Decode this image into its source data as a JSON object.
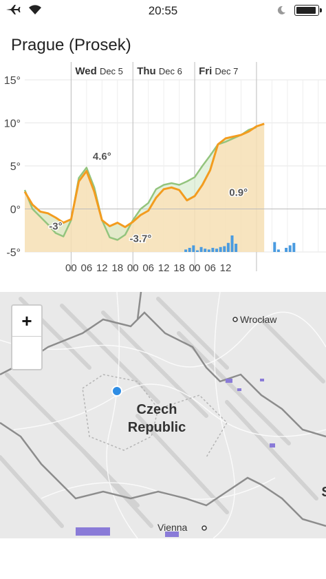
{
  "status_bar": {
    "time": "20:55",
    "battery_level": 1.0
  },
  "location": {
    "title": "Prague (Prosek)"
  },
  "chart_data": {
    "type": "line",
    "y_ticks": [
      "15°",
      "10°",
      "5°",
      "0°",
      "-5°"
    ],
    "ylim": [
      -5,
      15
    ],
    "x_tick_labels": [
      "00",
      "06",
      "12",
      "18",
      "00",
      "06",
      "12",
      "18",
      "00",
      "06",
      "12"
    ],
    "day_labels": [
      {
        "day": "Wed",
        "date": "Dec 5"
      },
      {
        "day": "Thu",
        "date": "Dec 6"
      },
      {
        "day": "Fri",
        "date": "Dec 7"
      }
    ],
    "annotations": [
      {
        "text": "4.6°"
      },
      {
        "text": "-3°"
      },
      {
        "text": "-3.7°"
      },
      {
        "text": "0.9°"
      }
    ],
    "series": [
      {
        "color": "#f39c1f",
        "x_hours": [
          0,
          3,
          6,
          9,
          12,
          15,
          18,
          21,
          24,
          27,
          30,
          33,
          36,
          39,
          42,
          45,
          48,
          51,
          54,
          57,
          60,
          63,
          66,
          69,
          72,
          75,
          78,
          81,
          84,
          87,
          90,
          93
        ],
        "values": [
          2,
          0.5,
          -0.3,
          -0.5,
          -1,
          -1.6,
          -1.2,
          3.2,
          4.4,
          2,
          -1.3,
          -2,
          -1.6,
          -2.1,
          -1.5,
          -0.7,
          -0.2,
          1.3,
          2.3,
          2.5,
          2.2,
          1,
          1.5,
          2.8,
          4.5,
          7.5,
          8.2,
          8.4,
          8.6,
          9,
          9.6,
          9.9
        ]
      },
      {
        "color": "#93c47d",
        "x_hours": [
          0,
          3,
          6,
          9,
          12,
          15,
          18,
          21,
          24,
          27,
          30,
          33,
          36,
          39,
          42,
          45,
          48,
          51,
          54,
          57,
          60,
          63,
          66,
          69,
          72,
          75,
          78,
          81,
          84,
          87,
          90
        ],
        "values": [
          2.2,
          0,
          -0.9,
          -1.8,
          -2.8,
          -3.2,
          -1.3,
          3.6,
          4.8,
          2.5,
          -1.3,
          -3.3,
          -3.6,
          -3,
          -1.3,
          0,
          0.7,
          2.3,
          2.8,
          3,
          2.8,
          3.2,
          3.7,
          5,
          6.2,
          7.5,
          7.8,
          8.2,
          8.6,
          9.2,
          9.5
        ]
      }
    ],
    "precip_bars": [
      0.3,
      0.5,
      0.8,
      0.2,
      0.6,
      0.4,
      0.3,
      0.5,
      0.4,
      0.6,
      0.7,
      1.1,
      2.0,
      1.0,
      0,
      0,
      0,
      0,
      0,
      0,
      0,
      0,
      0,
      1.2,
      0.3,
      0,
      0.5,
      0.8,
      1.1
    ]
  },
  "map": {
    "zoom_in_label": "+",
    "cities": [
      "Wrocław",
      "Vienna"
    ],
    "country_line1": "Czech",
    "country_line2": "Republic",
    "edge_letter": "S"
  }
}
